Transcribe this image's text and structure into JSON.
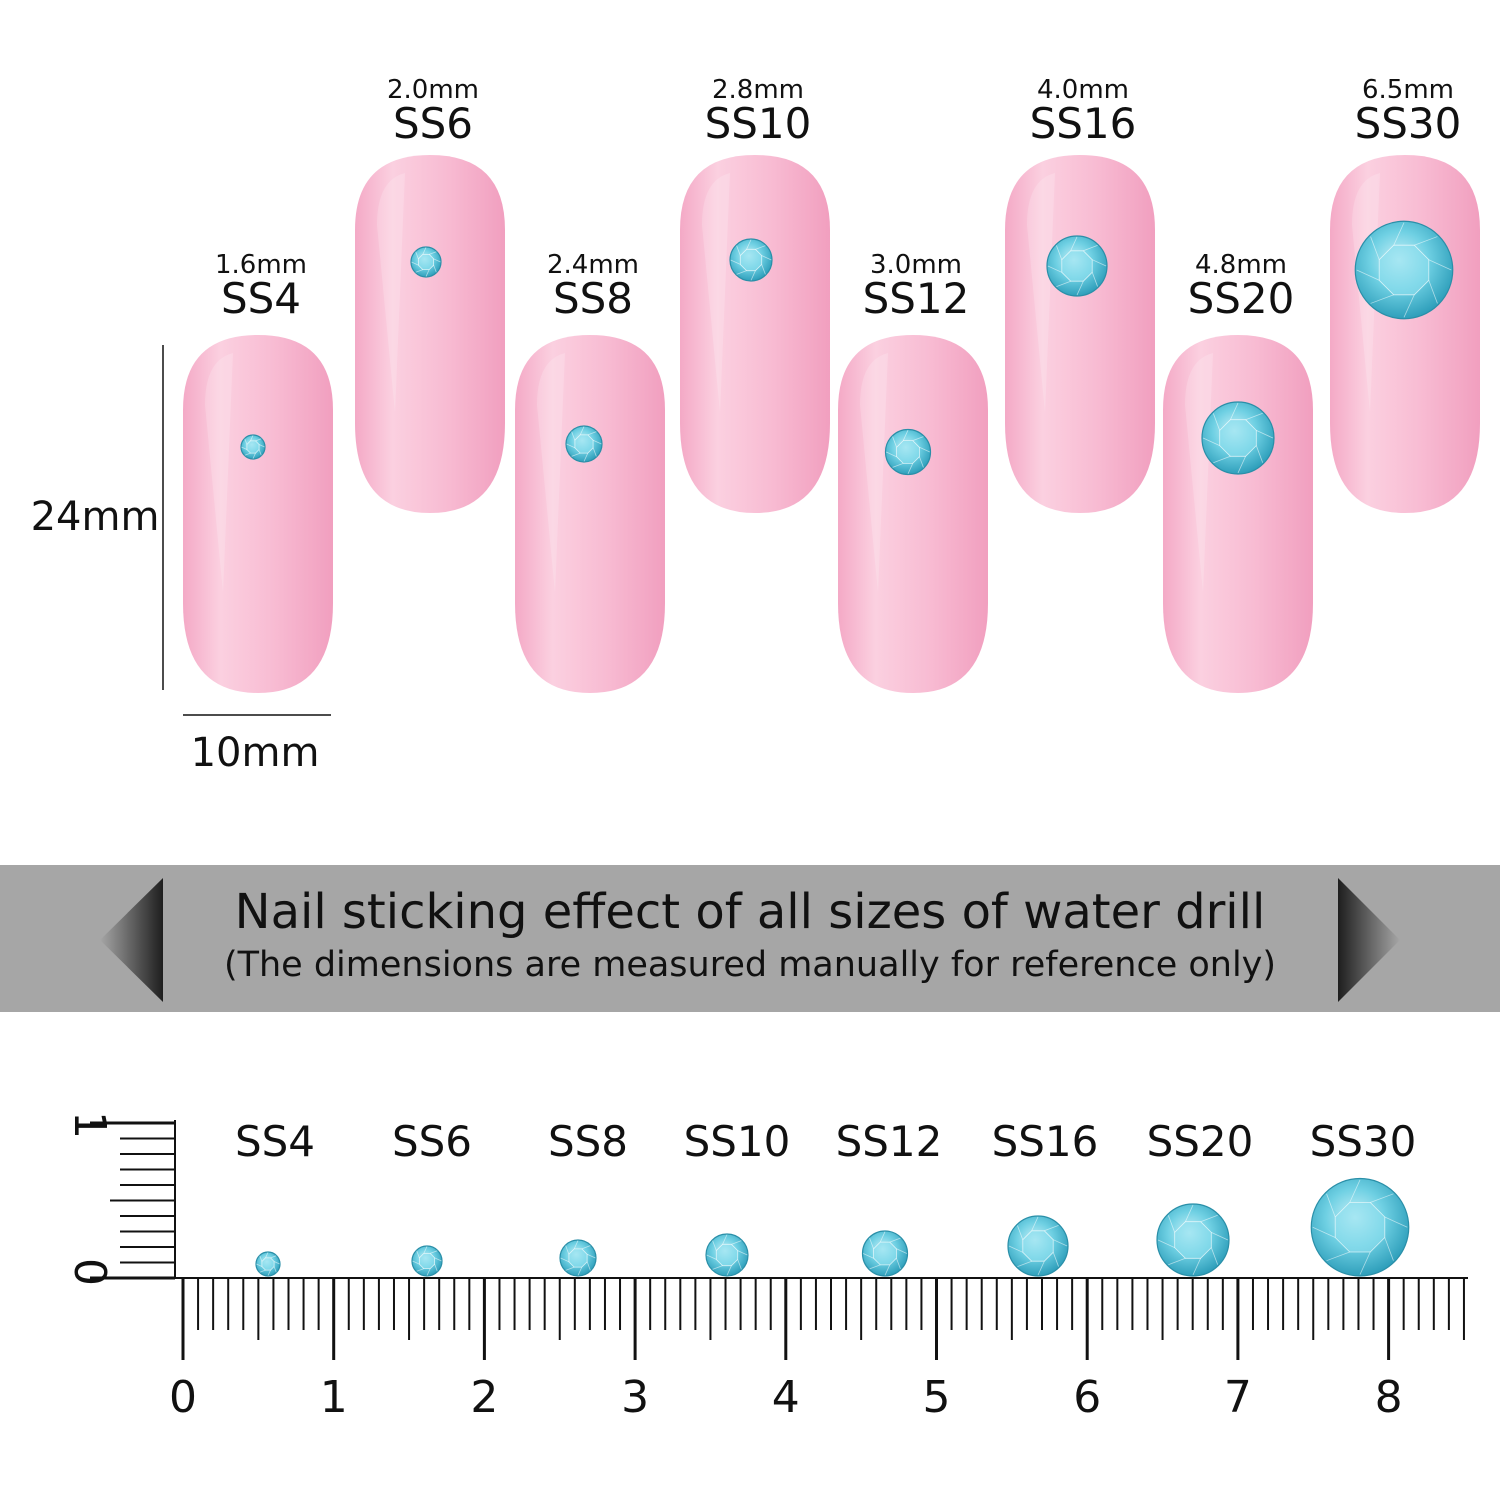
{
  "sizes": [
    {
      "name": "SS4",
      "mm": 1.6,
      "label_mm": "1.6mm"
    },
    {
      "name": "SS6",
      "mm": 2.0,
      "label_mm": "2.0mm"
    },
    {
      "name": "SS8",
      "mm": 2.4,
      "label_mm": "2.4mm"
    },
    {
      "name": "SS10",
      "mm": 2.8,
      "label_mm": "2.8mm"
    },
    {
      "name": "SS12",
      "mm": 3.0,
      "label_mm": "3.0mm"
    },
    {
      "name": "SS16",
      "mm": 4.0,
      "label_mm": "4.0mm"
    },
    {
      "name": "SS20",
      "mm": 4.8,
      "label_mm": "4.8mm"
    },
    {
      "name": "SS30",
      "mm": 6.5,
      "label_mm": "6.5mm"
    }
  ],
  "nail_dimensions": {
    "height": "24mm",
    "width": "10mm"
  },
  "banner": {
    "title": "Nail sticking effect of all sizes of water drill",
    "subtitle": "(The dimensions are measured manually for reference only)"
  },
  "ruler": {
    "horizontal_labels": [
      "0",
      "1",
      "2",
      "3",
      "4",
      "5",
      "6",
      "7",
      "8"
    ],
    "vertical_labels": [
      "0",
      "1"
    ],
    "unit": "cm"
  },
  "colors": {
    "nail_pink": "#f7b8d0",
    "gem_blue": "#5cc6dc",
    "banner_gray": "#a6a6a6",
    "banner_arrow": "#2b2b2b"
  }
}
